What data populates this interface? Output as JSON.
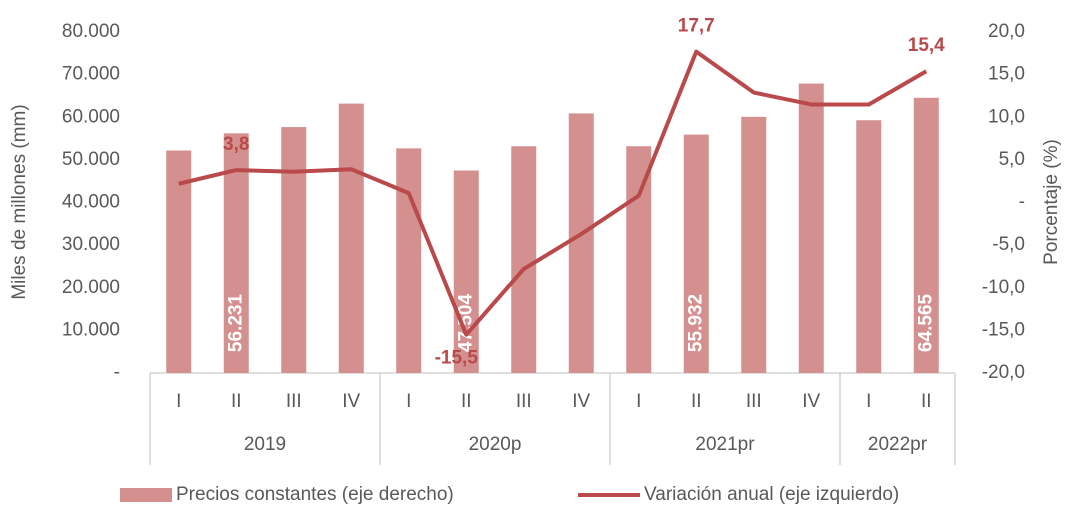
{
  "chart_data": {
    "type": "bar_line",
    "y_label": "Miles de millones (mm)",
    "y2_label": "Porcentaje (%)",
    "categories": [
      "I",
      "II",
      "III",
      "IV",
      "I",
      "II",
      "III",
      "IV",
      "I",
      "II",
      "III",
      "IV",
      "I",
      "II"
    ],
    "groups": [
      {
        "label": "2019",
        "count": 4
      },
      {
        "label": "2020p",
        "count": 4
      },
      {
        "label": "2021pr",
        "count": 4
      },
      {
        "label": "2022pr",
        "count": 2
      }
    ],
    "series": [
      {
        "name": "Precios constantes (eje derecho)",
        "type": "bar",
        "color": "#d4908f",
        "values": [
          52200,
          56231,
          57700,
          63200,
          52700,
          47504,
          53200,
          60900,
          53200,
          55932,
          60100,
          67900,
          59300,
          64565
        ],
        "value_labels": [
          null,
          "56.231",
          null,
          null,
          null,
          "47.504",
          null,
          null,
          null,
          "55.932",
          null,
          null,
          null,
          "64.565"
        ]
      },
      {
        "name": "Variación anual (eje izquierdo)",
        "type": "line",
        "axis": "y2",
        "color": "#b9494a",
        "values": [
          2.2,
          3.8,
          3.6,
          3.9,
          1.1,
          -15.5,
          -7.8,
          -3.7,
          0.8,
          17.7,
          12.9,
          11.5,
          11.5,
          15.4
        ],
        "value_labels": [
          null,
          "3,8",
          null,
          null,
          null,
          "-15,5",
          null,
          null,
          null,
          "17,7",
          null,
          null,
          null,
          "15,4"
        ]
      }
    ],
    "ylim": [
      0,
      80000
    ],
    "yticks": [
      {
        "value": 0,
        "label": "-"
      },
      {
        "value": 10000,
        "label": "10.000"
      },
      {
        "value": 20000,
        "label": "20.000"
      },
      {
        "value": 30000,
        "label": "30.000"
      },
      {
        "value": 40000,
        "label": "40.000"
      },
      {
        "value": 50000,
        "label": "50.000"
      },
      {
        "value": 60000,
        "label": "60.000"
      },
      {
        "value": 70000,
        "label": "70.000"
      },
      {
        "value": 80000,
        "label": "80.000"
      }
    ],
    "y2lim": [
      -20,
      20
    ],
    "y2ticks": [
      {
        "value": -20,
        "label": "-20,0"
      },
      {
        "value": -15,
        "label": "-15,0"
      },
      {
        "value": -10,
        "label": "-10,0"
      },
      {
        "value": -5,
        "label": "-5,0"
      },
      {
        "value": 0,
        "label": "-"
      },
      {
        "value": 5,
        "label": "5,0"
      },
      {
        "value": 10,
        "label": "10,0"
      },
      {
        "value": 15,
        "label": "15,0"
      },
      {
        "value": 20,
        "label": "20,0"
      }
    ]
  }
}
